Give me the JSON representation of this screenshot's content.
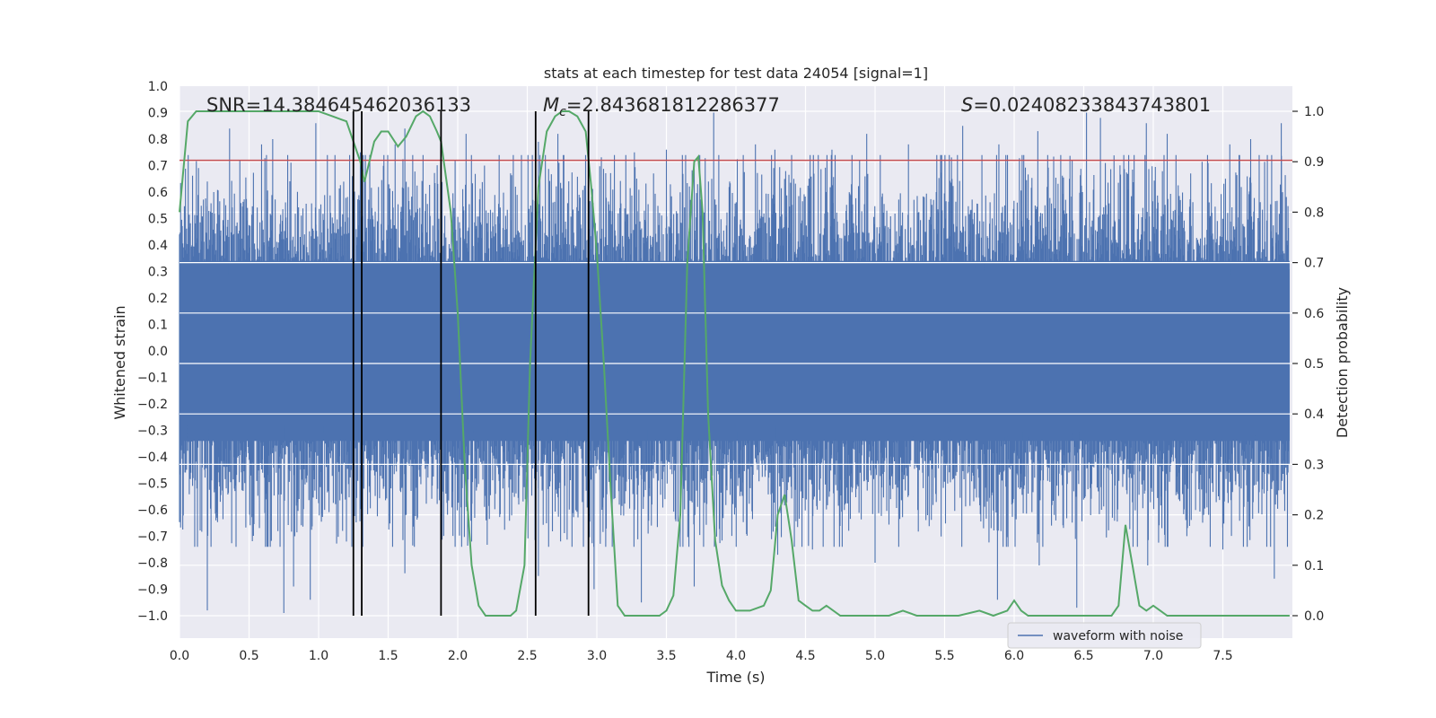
{
  "chart_data": {
    "type": "line",
    "title": "stats at each timestep for test data 24054 [signal=1]",
    "xlabel": "Time (s)",
    "ylabel_left": "Whitened strain",
    "ylabel_right": "Detection probability",
    "xlim": [
      0,
      8
    ],
    "ylim_left": [
      -1.0,
      1.0
    ],
    "ylim_right": [
      0.0,
      1.0
    ],
    "x_ticks": [
      "0.0",
      "0.5",
      "1.0",
      "1.5",
      "2.0",
      "2.5",
      "3.0",
      "3.5",
      "4.0",
      "4.5",
      "5.0",
      "5.5",
      "6.0",
      "6.5",
      "7.0",
      "7.5"
    ],
    "y_left_ticks": [
      "1.0",
      "0.9",
      "0.8",
      "0.7",
      "0.6",
      "0.5",
      "0.4",
      "0.3",
      "0.2",
      "0.1",
      "0.0",
      "−0.1",
      "−0.2",
      "−0.3",
      "−0.4",
      "−0.5",
      "−0.6",
      "−0.7",
      "−0.8",
      "−0.9",
      "−1.0"
    ],
    "y_right_ticks": [
      "1.0",
      "0.9",
      "0.8",
      "0.7",
      "0.6",
      "0.5",
      "0.4",
      "0.3",
      "0.2",
      "0.1",
      "0.0"
    ],
    "grid": true,
    "legend": {
      "placement": "lower-center-right",
      "entries": [
        "waveform with noise"
      ]
    },
    "annotations": {
      "snr": "SNR=14.384645462036133",
      "mc_prefix": "M",
      "mc_sub": "c",
      "mc_value": "=2.843681812286377",
      "s_prefix": "S",
      "s_value": "=0.02408233843743801"
    },
    "colors": {
      "waveform": "#4c72b0",
      "probability": "#55a868",
      "threshold": "#c44e52",
      "markers": "#000000",
      "plot_bg": "#eaeaf2",
      "grid": "#ffffff"
    },
    "waveform": {
      "name": "waveform with noise",
      "sample_rate_hz": 512,
      "duration_s": 7.98,
      "core_envelope": 0.34,
      "tail_peaks_top": [
        [
          0.2,
          0.64
        ],
        [
          0.36,
          0.84
        ],
        [
          0.59,
          0.78
        ],
        [
          0.67,
          0.8
        ],
        [
          0.98,
          0.86
        ],
        [
          1.3,
          0.75
        ],
        [
          1.55,
          0.78
        ],
        [
          1.62,
          0.84
        ],
        [
          2.06,
          0.82
        ],
        [
          2.58,
          0.79
        ],
        [
          2.72,
          0.82
        ],
        [
          3.27,
          0.75
        ],
        [
          3.5,
          0.76
        ],
        [
          3.7,
          0.72
        ],
        [
          3.84,
          0.9
        ],
        [
          4.14,
          0.78
        ],
        [
          4.28,
          0.76
        ],
        [
          4.69,
          0.76
        ],
        [
          4.94,
          0.82
        ],
        [
          5.24,
          0.78
        ],
        [
          5.63,
          0.85
        ],
        [
          5.89,
          0.78
        ],
        [
          6.17,
          0.83
        ],
        [
          6.52,
          0.9
        ],
        [
          6.62,
          0.88
        ],
        [
          6.95,
          0.86
        ],
        [
          7.1,
          0.82
        ],
        [
          7.55,
          0.78
        ],
        [
          7.7,
          0.8
        ],
        [
          7.92,
          0.86
        ]
      ],
      "tail_peaks_bottom": [
        [
          0.2,
          -0.98
        ],
        [
          0.75,
          -0.99
        ],
        [
          0.94,
          -0.94
        ],
        [
          0.82,
          -0.89
        ],
        [
          1.62,
          -0.84
        ],
        [
          2.58,
          -0.85
        ],
        [
          2.98,
          -0.9
        ],
        [
          3.32,
          -0.95
        ],
        [
          3.7,
          -0.89
        ],
        [
          5.0,
          -0.8
        ],
        [
          5.88,
          -0.94
        ],
        [
          6.18,
          -0.81
        ],
        [
          6.45,
          -0.97
        ],
        [
          6.96,
          -0.81
        ],
        [
          7.87,
          -0.86
        ],
        [
          7.5,
          -0.75
        ],
        [
          4.55,
          -0.75
        ],
        [
          4.3,
          -0.77
        ],
        [
          2.1,
          -0.72
        ],
        [
          1.2,
          -0.72
        ]
      ]
    },
    "probability": {
      "name": "detection probability",
      "x": [
        0.0,
        0.06,
        0.12,
        0.25,
        0.5,
        0.75,
        1.0,
        1.1,
        1.2,
        1.3,
        1.33,
        1.4,
        1.45,
        1.5,
        1.57,
        1.63,
        1.7,
        1.75,
        1.8,
        1.85,
        1.88,
        1.95,
        2.0,
        2.05,
        2.1,
        2.15,
        2.2,
        2.3,
        2.38,
        2.42,
        2.48,
        2.52,
        2.58,
        2.64,
        2.7,
        2.75,
        2.8,
        2.86,
        2.92,
        2.96,
        3.0,
        3.05,
        3.1,
        3.15,
        3.2,
        3.3,
        3.4,
        3.45,
        3.5,
        3.55,
        3.6,
        3.65,
        3.7,
        3.73,
        3.76,
        3.8,
        3.85,
        3.9,
        3.95,
        4.0,
        4.05,
        4.1,
        4.2,
        4.25,
        4.3,
        4.35,
        4.4,
        4.45,
        4.5,
        4.55,
        4.6,
        4.65,
        4.75,
        4.8,
        4.9,
        5.0,
        5.1,
        5.2,
        5.3,
        5.4,
        5.6,
        5.75,
        5.85,
        5.95,
        6.0,
        6.05,
        6.1,
        6.2,
        6.4,
        6.5,
        6.6,
        6.7,
        6.75,
        6.8,
        6.85,
        6.9,
        6.95,
        7.0,
        7.05,
        7.1,
        7.15,
        7.2,
        7.3,
        7.4,
        7.5,
        7.7,
        7.9,
        7.98
      ],
      "y": [
        0.8,
        0.98,
        1.0,
        1.0,
        1.0,
        1.0,
        1.0,
        0.99,
        0.98,
        0.9,
        0.86,
        0.94,
        0.96,
        0.96,
        0.93,
        0.95,
        0.99,
        1.0,
        0.99,
        0.96,
        0.94,
        0.8,
        0.6,
        0.3,
        0.1,
        0.02,
        0.0,
        0.0,
        0.0,
        0.01,
        0.1,
        0.5,
        0.85,
        0.96,
        0.99,
        1.0,
        1.0,
        0.99,
        0.96,
        0.85,
        0.72,
        0.5,
        0.25,
        0.02,
        0.0,
        0.0,
        0.0,
        0.0,
        0.01,
        0.04,
        0.2,
        0.7,
        0.9,
        0.91,
        0.8,
        0.4,
        0.15,
        0.06,
        0.03,
        0.01,
        0.01,
        0.01,
        0.02,
        0.05,
        0.2,
        0.24,
        0.15,
        0.03,
        0.02,
        0.01,
        0.01,
        0.02,
        0.0,
        0.0,
        0.0,
        0.0,
        0.0,
        0.01,
        0.0,
        0.0,
        0.0,
        0.01,
        0.0,
        0.01,
        0.03,
        0.01,
        0.0,
        0.0,
        0.0,
        0.0,
        0.0,
        0.0,
        0.02,
        0.18,
        0.1,
        0.02,
        0.01,
        0.02,
        0.01,
        0.0,
        0.0,
        0.0,
        0.0,
        0.0,
        0.0,
        0.0,
        0.0,
        0.0
      ]
    },
    "threshold_left": 0.72,
    "markers_x": [
      1.25,
      1.31,
      1.88,
      2.56,
      2.94
    ]
  }
}
